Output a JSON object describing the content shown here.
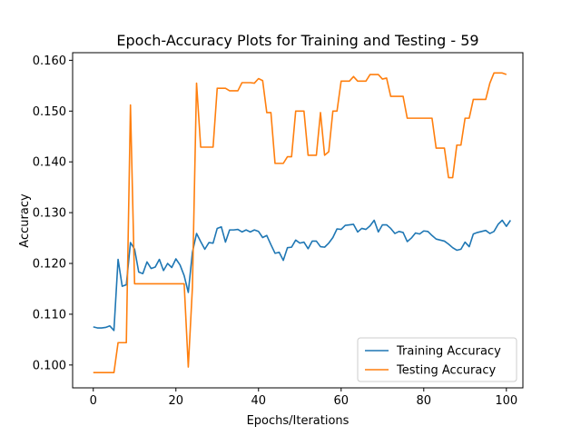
{
  "chart_data": {
    "type": "line",
    "title": "Epoch-Accuracy Plots for Training and Testing - 59",
    "xlabel": "Epochs/Iterations",
    "ylabel": "Accuracy",
    "xlim": [
      -5,
      104
    ],
    "ylim": [
      0.0955,
      0.1615
    ],
    "x_ticks": [
      0,
      20,
      40,
      60,
      80,
      100
    ],
    "y_ticks": [
      0.1,
      0.11,
      0.12,
      0.13,
      0.14,
      0.15,
      0.16
    ],
    "x_tick_labels": [
      "0",
      "20",
      "40",
      "60",
      "80",
      "100"
    ],
    "y_tick_labels": [
      "0.100",
      "0.110",
      "0.120",
      "0.130",
      "0.140",
      "0.150",
      "0.160"
    ],
    "grid": false,
    "legend_position": "lower-right",
    "series": [
      {
        "name": "Training Accuracy",
        "color": "#1f77b4",
        "values": [
          0.1075,
          0.1073,
          0.1073,
          0.1074,
          0.1077,
          0.1068,
          0.1208,
          0.1155,
          0.1158,
          0.1241,
          0.1228,
          0.1183,
          0.118,
          0.1203,
          0.119,
          0.1193,
          0.1208,
          0.1186,
          0.12,
          0.1192,
          0.1209,
          0.1197,
          0.1176,
          0.1143,
          0.1222,
          0.1259,
          0.1243,
          0.1228,
          0.1241,
          0.124,
          0.1269,
          0.1272,
          0.1242,
          0.1266,
          0.1266,
          0.1267,
          0.1262,
          0.1266,
          0.1262,
          0.1266,
          0.1263,
          0.1251,
          0.1255,
          0.1237,
          0.122,
          0.1222,
          0.1206,
          0.1231,
          0.1232,
          0.1246,
          0.124,
          0.1242,
          0.1229,
          0.1244,
          0.1244,
          0.1233,
          0.1232,
          0.124,
          0.1251,
          0.1268,
          0.1267,
          0.1275,
          0.1276,
          0.1277,
          0.1262,
          0.1269,
          0.1267,
          0.1274,
          0.1285,
          0.1262,
          0.1276,
          0.1276,
          0.1269,
          0.1259,
          0.1263,
          0.1261,
          0.1243,
          0.125,
          0.126,
          0.1258,
          0.1264,
          0.1263,
          0.1255,
          0.1248,
          0.1246,
          0.1244,
          0.1238,
          0.1231,
          0.1226,
          0.1228,
          0.1242,
          0.1233,
          0.1258,
          0.1261,
          0.1263,
          0.1265,
          0.1259,
          0.1263,
          0.1277,
          0.1285,
          0.1273,
          0.1285
        ]
      },
      {
        "name": "Testing Accuracy",
        "color": "#ff7f0e",
        "values": [
          0.0985,
          0.0985,
          0.0985,
          0.0985,
          0.0985,
          0.0985,
          0.1044,
          0.1044,
          0.1044,
          0.1512,
          0.116,
          0.116,
          0.116,
          0.116,
          0.116,
          0.116,
          0.116,
          0.116,
          0.116,
          0.116,
          0.116,
          0.116,
          0.116,
          0.0996,
          0.1153,
          0.1555,
          0.1429,
          0.1429,
          0.1429,
          0.1429,
          0.1545,
          0.1545,
          0.1545,
          0.154,
          0.154,
          0.154,
          0.1556,
          0.1556,
          0.1556,
          0.1555,
          0.1564,
          0.156,
          0.1497,
          0.1497,
          0.1397,
          0.1397,
          0.1397,
          0.141,
          0.141,
          0.15,
          0.15,
          0.15,
          0.1413,
          0.1413,
          0.1413,
          0.1497,
          0.1413,
          0.142,
          0.15,
          0.15,
          0.1559,
          0.1559,
          0.1559,
          0.1568,
          0.1559,
          0.1559,
          0.1559,
          0.1572,
          0.1572,
          0.1572,
          0.1563,
          0.1565,
          0.1529,
          0.1529,
          0.1529,
          0.1529,
          0.1486,
          0.1486,
          0.1486,
          0.1486,
          0.1486,
          0.1486,
          0.1486,
          0.1427,
          0.1427,
          0.1427,
          0.1369,
          0.1369,
          0.1433,
          0.1433,
          0.1486,
          0.1486,
          0.1523,
          0.1523,
          0.1523,
          0.1523,
          0.1555,
          0.1575,
          0.1575,
          0.1575,
          0.1572
        ]
      }
    ]
  }
}
